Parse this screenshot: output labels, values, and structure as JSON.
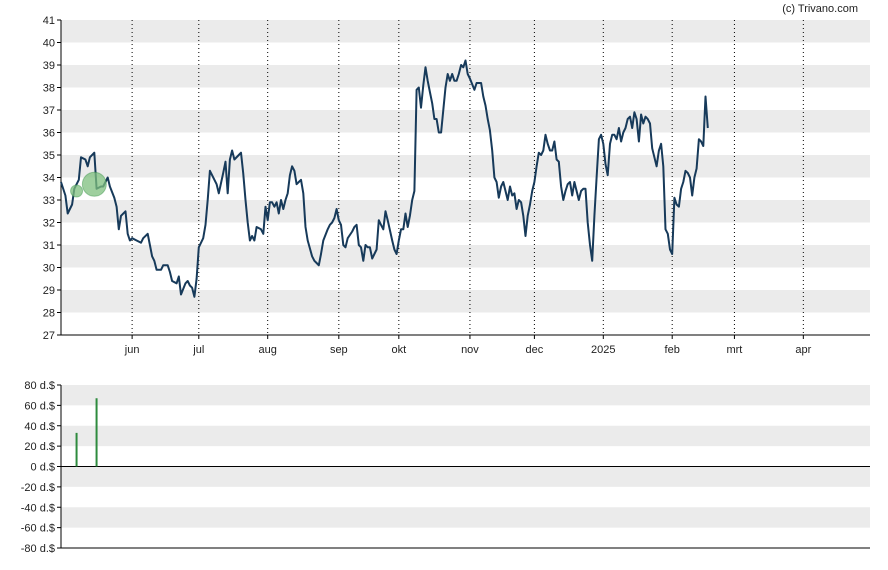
{
  "credit": "(c) Trivano.com",
  "colors": {
    "price_line": "#173a5a",
    "band": "#ebebeb",
    "dividend_bar": "#2e8b3e",
    "marker_fill": "#7dbf7d",
    "axis": "#000000",
    "grid_dotted": "#000000"
  },
  "chart_data": [
    {
      "type": "line",
      "title": "",
      "xlabel": "",
      "ylabel": "",
      "ylim": [
        27,
        41
      ],
      "y_ticks": [
        "27",
        "28",
        "29",
        "30",
        "31",
        "32",
        "33",
        "34",
        "35",
        "36",
        "37",
        "38",
        "39",
        "40",
        "41"
      ],
      "x_month_labels": [
        "jun",
        "jul",
        "aug",
        "sep",
        "okt",
        "nov",
        "dec",
        "2025",
        "feb",
        "mrt",
        "apr"
      ],
      "x_range_days": [
        0,
        364
      ],
      "x_month_start_days": [
        32,
        62,
        93,
        125,
        152,
        184,
        213,
        244,
        275,
        303,
        334
      ],
      "grid": "dotted vertical lines at month starts, alternating horizontal bands",
      "series": [
        {
          "values": [
            [
              0,
              33.8
            ],
            [
              2,
              33.2
            ],
            [
              3,
              32.4
            ],
            [
              5,
              32.8
            ],
            [
              6,
              33.5
            ],
            [
              8,
              33.9
            ],
            [
              9,
              34.9
            ],
            [
              11,
              34.8
            ],
            [
              12,
              34.5
            ],
            [
              13,
              34.9
            ],
            [
              15,
              35.1
            ],
            [
              16,
              33.5
            ],
            [
              18,
              33.6
            ],
            [
              19,
              33.6
            ],
            [
              21,
              34.0
            ],
            [
              22,
              33.6
            ],
            [
              24,
              33.1
            ],
            [
              25,
              32.7
            ],
            [
              26,
              31.7
            ],
            [
              27,
              32.3
            ],
            [
              29,
              32.5
            ],
            [
              30,
              31.5
            ],
            [
              31,
              31.2
            ],
            [
              32,
              31.3
            ],
            [
              34,
              31.2
            ],
            [
              36,
              31.1
            ],
            [
              37,
              31.3
            ],
            [
              39,
              31.5
            ],
            [
              40,
              31.0
            ],
            [
              41,
              30.5
            ],
            [
              42,
              30.3
            ],
            [
              43,
              29.9
            ],
            [
              45,
              29.9
            ],
            [
              46,
              30.1
            ],
            [
              48,
              30.1
            ],
            [
              49,
              29.8
            ],
            [
              50,
              29.4
            ],
            [
              52,
              29.3
            ],
            [
              53,
              29.6
            ],
            [
              54,
              28.8
            ],
            [
              56,
              29.3
            ],
            [
              57,
              29.4
            ],
            [
              58,
              29.2
            ],
            [
              59,
              29.1
            ],
            [
              60,
              28.7
            ],
            [
              61,
              29.5
            ],
            [
              62,
              30.9
            ],
            [
              64,
              31.3
            ],
            [
              65,
              31.9
            ],
            [
              66,
              33.0
            ],
            [
              67,
              34.3
            ],
            [
              68,
              34.1
            ],
            [
              70,
              33.7
            ],
            [
              71,
              33.3
            ],
            [
              73,
              34.2
            ],
            [
              74,
              34.7
            ],
            [
              75,
              33.3
            ],
            [
              76,
              34.8
            ],
            [
              77,
              35.2
            ],
            [
              78,
              34.8
            ],
            [
              80,
              35.0
            ],
            [
              81,
              35.1
            ],
            [
              82,
              34.2
            ],
            [
              83,
              33.0
            ],
            [
              84,
              32.0
            ],
            [
              85,
              31.2
            ],
            [
              86,
              31.4
            ],
            [
              87,
              31.2
            ],
            [
              88,
              31.8
            ],
            [
              90,
              31.7
            ],
            [
              91,
              31.5
            ],
            [
              92,
              32.7
            ],
            [
              93,
              32.1
            ],
            [
              94,
              32.9
            ],
            [
              95,
              32.9
            ],
            [
              96,
              32.7
            ],
            [
              97,
              32.9
            ],
            [
              98,
              32.4
            ],
            [
              99,
              33.0
            ],
            [
              100,
              32.6
            ],
            [
              101,
              33.0
            ],
            [
              102,
              33.3
            ],
            [
              103,
              34.1
            ],
            [
              104,
              34.5
            ],
            [
              105,
              34.3
            ],
            [
              106,
              33.7
            ],
            [
              107,
              33.8
            ],
            [
              108,
              33.9
            ],
            [
              109,
              33.3
            ],
            [
              110,
              31.8
            ],
            [
              111,
              31.2
            ],
            [
              113,
              30.5
            ],
            [
              114,
              30.3
            ],
            [
              115,
              30.2
            ],
            [
              116,
              30.1
            ],
            [
              117,
              30.6
            ],
            [
              118,
              31.2
            ],
            [
              120,
              31.7
            ],
            [
              121,
              31.9
            ],
            [
              122,
              32.0
            ],
            [
              123,
              32.2
            ],
            [
              124,
              32.6
            ],
            [
              125,
              32.1
            ],
            [
              126,
              31.9
            ],
            [
              127,
              31.0
            ],
            [
              128,
              30.9
            ],
            [
              129,
              31.3
            ],
            [
              131,
              31.6
            ],
            [
              132,
              31.8
            ],
            [
              133,
              31.9
            ],
            [
              134,
              31.0
            ],
            [
              135,
              30.9
            ],
            [
              136,
              30.3
            ],
            [
              137,
              31.0
            ],
            [
              138,
              30.9
            ],
            [
              139,
              30.9
            ],
            [
              140,
              30.4
            ],
            [
              141,
              30.6
            ],
            [
              142,
              30.8
            ],
            [
              143,
              32.1
            ],
            [
              144,
              31.9
            ],
            [
              145,
              31.7
            ],
            [
              146,
              32.5
            ],
            [
              147,
              32.1
            ],
            [
              149,
              31.2
            ],
            [
              150,
              30.8
            ],
            [
              151,
              30.6
            ],
            [
              152,
              31.2
            ],
            [
              153,
              31.7
            ],
            [
              154,
              31.7
            ],
            [
              155,
              32.4
            ],
            [
              156,
              31.8
            ],
            [
              157,
              32.3
            ],
            [
              158,
              33.0
            ],
            [
              159,
              33.4
            ],
            [
              160,
              37.9
            ],
            [
              161,
              38.0
            ],
            [
              162,
              37.1
            ],
            [
              163,
              38.1
            ],
            [
              164,
              38.9
            ],
            [
              165,
              38.3
            ],
            [
              166,
              37.8
            ],
            [
              167,
              37.3
            ],
            [
              168,
              36.6
            ],
            [
              169,
              36.6
            ],
            [
              170,
              36.0
            ],
            [
              171,
              36.0
            ],
            [
              172,
              37.0
            ],
            [
              173,
              38.0
            ],
            [
              174,
              38.6
            ],
            [
              175,
              38.3
            ],
            [
              176,
              38.6
            ],
            [
              177,
              38.3
            ],
            [
              178,
              38.3
            ],
            [
              179,
              38.6
            ],
            [
              180,
              39.0
            ],
            [
              181,
              38.9
            ],
            [
              182,
              39.2
            ],
            [
              183,
              38.6
            ],
            [
              184,
              38.4
            ],
            [
              186,
              37.9
            ],
            [
              187,
              38.2
            ],
            [
              188,
              38.2
            ],
            [
              189,
              38.2
            ],
            [
              190,
              37.6
            ],
            [
              191,
              37.2
            ],
            [
              192,
              36.6
            ],
            [
              193,
              36.1
            ],
            [
              194,
              35.2
            ],
            [
              195,
              34.0
            ],
            [
              196,
              33.8
            ],
            [
              197,
              33.1
            ],
            [
              198,
              33.6
            ],
            [
              199,
              33.8
            ],
            [
              200,
              33.4
            ],
            [
              201,
              33.0
            ],
            [
              202,
              33.6
            ],
            [
              203,
              33.2
            ],
            [
              204,
              33.3
            ],
            [
              205,
              32.6
            ],
            [
              206,
              33.0
            ],
            [
              207,
              32.9
            ],
            [
              208,
              32.3
            ],
            [
              209,
              31.4
            ],
            [
              210,
              32.3
            ],
            [
              211,
              32.8
            ],
            [
              212,
              33.4
            ],
            [
              213,
              33.8
            ],
            [
              214,
              34.5
            ],
            [
              215,
              35.1
            ],
            [
              216,
              35.0
            ],
            [
              217,
              35.2
            ],
            [
              218,
              35.9
            ],
            [
              219,
              35.5
            ],
            [
              220,
              35.2
            ],
            [
              221,
              35.2
            ],
            [
              222,
              35.6
            ],
            [
              223,
              34.8
            ],
            [
              224,
              34.7
            ],
            [
              225,
              33.6
            ],
            [
              226,
              33.0
            ],
            [
              227,
              33.4
            ],
            [
              228,
              33.7
            ],
            [
              229,
              33.8
            ],
            [
              230,
              33.2
            ],
            [
              231,
              33.8
            ],
            [
              232,
              33.4
            ],
            [
              233,
              33.0
            ],
            [
              234,
              33.4
            ],
            [
              235,
              33.5
            ],
            [
              236,
              33.5
            ],
            [
              237,
              32.0
            ],
            [
              238,
              31.0
            ],
            [
              239,
              30.3
            ],
            [
              240,
              32.3
            ],
            [
              241,
              34.0
            ],
            [
              242,
              35.7
            ],
            [
              243,
              35.9
            ],
            [
              244,
              35.5
            ],
            [
              245,
              34.6
            ],
            [
              246,
              34.1
            ],
            [
              247,
              35.5
            ],
            [
              248,
              35.9
            ],
            [
              249,
              35.9
            ],
            [
              250,
              35.7
            ],
            [
              251,
              36.2
            ],
            [
              252,
              35.6
            ],
            [
              253,
              36.0
            ],
            [
              254,
              36.2
            ],
            [
              255,
              36.6
            ],
            [
              256,
              36.7
            ],
            [
              257,
              36.2
            ],
            [
              258,
              36.9
            ],
            [
              259,
              36.6
            ],
            [
              260,
              35.6
            ],
            [
              261,
              36.8
            ],
            [
              262,
              36.4
            ],
            [
              263,
              36.7
            ],
            [
              264,
              36.6
            ],
            [
              265,
              36.4
            ],
            [
              266,
              35.3
            ],
            [
              267,
              34.9
            ],
            [
              268,
              34.5
            ],
            [
              269,
              35.2
            ],
            [
              270,
              35.5
            ],
            [
              271,
              34.5
            ],
            [
              272,
              31.7
            ],
            [
              273,
              31.5
            ],
            [
              274,
              30.8
            ],
            [
              275,
              30.6
            ],
            [
              276,
              33.1
            ],
            [
              277,
              32.8
            ],
            [
              278,
              32.7
            ],
            [
              279,
              33.5
            ],
            [
              280,
              33.8
            ],
            [
              281,
              34.3
            ],
            [
              282,
              34.2
            ],
            [
              283,
              34.0
            ],
            [
              284,
              33.2
            ],
            [
              285,
              34.0
            ],
            [
              286,
              34.4
            ],
            [
              287,
              35.7
            ],
            [
              288,
              35.6
            ],
            [
              289,
              35.4
            ],
            [
              290,
              37.6
            ],
            [
              291,
              36.2
            ]
          ]
        }
      ],
      "markers": [
        {
          "x": 7,
          "y": 33.4,
          "size": "small"
        },
        {
          "x": 15,
          "y": 33.7,
          "size": "large"
        }
      ]
    },
    {
      "type": "bar",
      "title": "",
      "xlabel": "",
      "ylabel": "",
      "ylim": [
        -80,
        80
      ],
      "y_ticks": [
        "80 d.$",
        "60 d.$",
        "40 d.$",
        "20 d.$",
        "0 d.$",
        "-20 d.$",
        "-40 d.$",
        "-60 d.$",
        "-80 d.$"
      ],
      "bars": [
        {
          "x": 7,
          "value": 33
        },
        {
          "x": 16,
          "value": 67
        }
      ]
    }
  ]
}
